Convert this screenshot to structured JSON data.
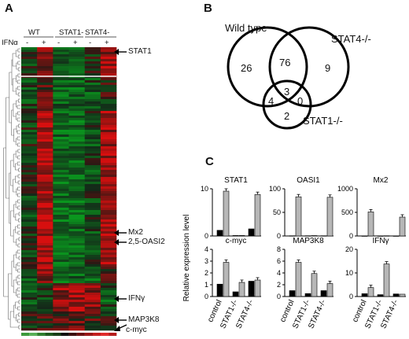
{
  "panels": {
    "a": {
      "letter": "A"
    },
    "b": {
      "letter": "B"
    },
    "c": {
      "letter": "C"
    }
  },
  "heatmap": {
    "treatment_label": "IFNα",
    "groups": [
      "WT",
      "STAT1-",
      "STAT4-"
    ],
    "signs": [
      "-",
      "+",
      "-",
      "+",
      "-",
      "+"
    ],
    "gene_labels": {
      "stat1": "STAT1",
      "mx2": "Mx2",
      "oasl2": "2,5-OASI2",
      "ifng": "IFNγ",
      "map3k8": "MAP3K8",
      "cmyc": "c-myc"
    }
  },
  "venn": {
    "wt_label": "Wild type",
    "stat4_label": "STAT4-/-",
    "stat1_label": "STAT1-/-",
    "regions": {
      "wt_only": "26",
      "wt_stat4": "76",
      "stat4_only": "9",
      "all_three": "3",
      "wt_stat1": "4",
      "stat4_stat1": "0",
      "stat1_only": "2"
    }
  },
  "chart_data": [
    {
      "type": "bar",
      "title": "STAT1",
      "categories": [
        "control",
        "STAT1-/-",
        "STAT4-/-"
      ],
      "ylim": [
        0,
        10
      ],
      "yticks": [
        "0",
        "10"
      ],
      "series": [
        {
          "values": [
            1.2,
            0.1,
            1.5
          ]
        },
        {
          "values": [
            9.5,
            0.1,
            8.8
          ]
        }
      ]
    },
    {
      "type": "bar",
      "title": "OASI1",
      "categories": [
        "control",
        "STAT1-/-",
        "STAT4-/-"
      ],
      "ylim": [
        0,
        100
      ],
      "yticks": [
        "0",
        "50",
        "100"
      ],
      "series": [
        {
          "values": [
            0.5,
            0.5,
            0.5
          ]
        },
        {
          "values": [
            83,
            0.8,
            82
          ]
        }
      ]
    },
    {
      "type": "bar",
      "title": "Mx2",
      "categories": [
        "control",
        "STAT1-/-",
        "STAT4-/-"
      ],
      "ylim": [
        0,
        1000
      ],
      "yticks": [
        "0",
        "500",
        "1000"
      ],
      "series": [
        {
          "values": [
            2,
            2,
            2
          ]
        },
        {
          "values": [
            510,
            5,
            400
          ]
        }
      ]
    },
    {
      "type": "bar",
      "title": "c-myc",
      "categories": [
        "control",
        "STAT1-/-",
        "STAT4-/-"
      ],
      "ylim": [
        0,
        4
      ],
      "yticks": [
        "0",
        "1",
        "2",
        "3",
        "4"
      ],
      "series": [
        {
          "values": [
            1.05,
            0.4,
            1.3
          ]
        },
        {
          "values": [
            2.9,
            1.2,
            1.4
          ]
        }
      ]
    },
    {
      "type": "bar",
      "title": "MAP3K8",
      "categories": [
        "control",
        "STAT1-/-",
        "STAT4-/-"
      ],
      "ylim": [
        0,
        8
      ],
      "yticks": [
        "0",
        "2",
        "4",
        "6",
        "8"
      ],
      "series": [
        {
          "values": [
            1.0,
            0.5,
            1.0
          ]
        },
        {
          "values": [
            5.8,
            3.9,
            2.2
          ]
        }
      ]
    },
    {
      "type": "bar",
      "title": "IFNγ",
      "categories": [
        "control",
        "STAT1-/-",
        "STAT4-/-"
      ],
      "ylim": [
        0,
        20
      ],
      "yticks": [
        "0",
        "10",
        "20"
      ],
      "series": [
        {
          "values": [
            1.2,
            0.8,
            1.1
          ]
        },
        {
          "values": [
            3.8,
            13.8,
            1.0
          ]
        }
      ]
    }
  ],
  "charts_ylabel": "Relative expression level",
  "colors": {
    "black_bar": "#000000",
    "grey_bar": "#b7b7b7"
  }
}
